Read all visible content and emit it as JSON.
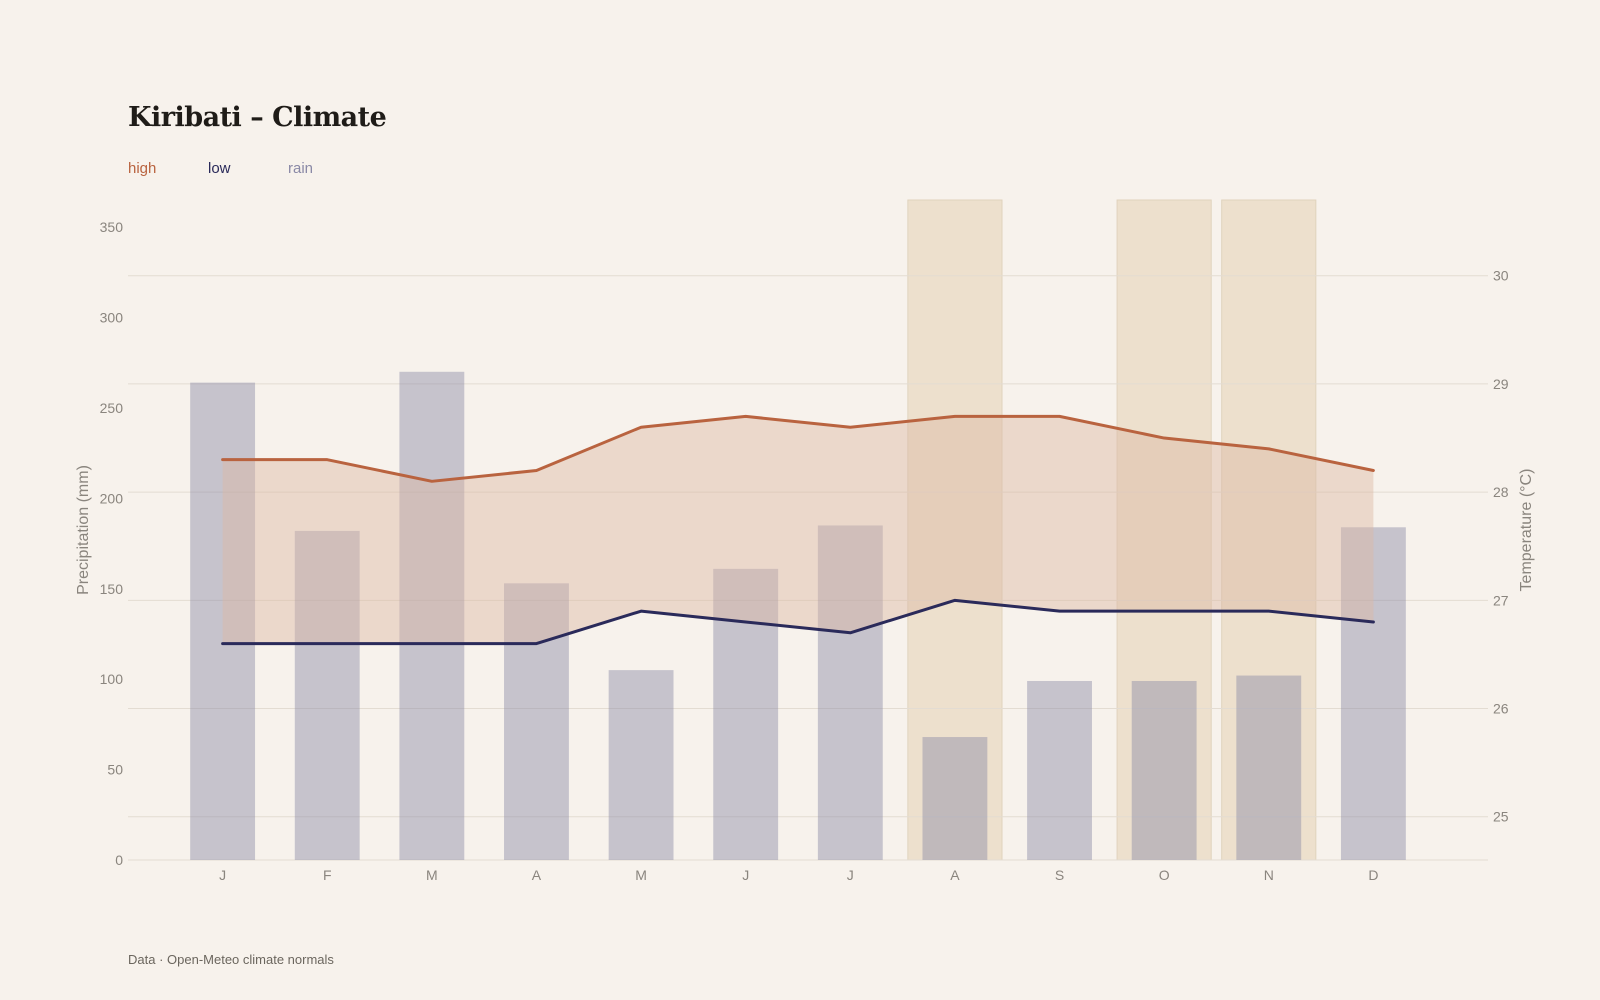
{
  "title": "Kiribati – Climate",
  "source": "Data · Open-Meteo climate normals",
  "legend": [
    {
      "key": "high",
      "label": "high",
      "color": "#b9633f"
    },
    {
      "key": "low",
      "label": "low",
      "color": "#2a2a5a"
    },
    {
      "key": "rain",
      "label": "rain",
      "color": "#8a89a6"
    }
  ],
  "chart_data": {
    "type": "bar",
    "categories": [
      "J",
      "F",
      "M",
      "A",
      "M",
      "J",
      "J",
      "A",
      "S",
      "O",
      "N",
      "D"
    ],
    "series": [
      {
        "name": "rain",
        "type": "bar",
        "axis": "left",
        "values": [
          264,
          182,
          270,
          153,
          105,
          161,
          185,
          68,
          99,
          99,
          102,
          184
        ]
      },
      {
        "name": "high",
        "type": "line",
        "axis": "right",
        "values": [
          28.3,
          28.3,
          28.1,
          28.2,
          28.6,
          28.7,
          28.6,
          28.7,
          28.7,
          28.5,
          28.4,
          28.2
        ]
      },
      {
        "name": "low",
        "type": "line",
        "axis": "right",
        "values": [
          26.6,
          26.6,
          26.6,
          26.6,
          26.9,
          26.8,
          26.7,
          27.0,
          26.9,
          26.9,
          26.9,
          26.8
        ]
      }
    ],
    "highlighted_months": [
      7,
      9,
      10
    ],
    "ylabel": "Precipitation (mm)",
    "y2label": "Temperature (°C)",
    "ylim": [
      0,
      365
    ],
    "y2lim": [
      24.6,
      30.7
    ],
    "yticks": [
      0,
      50,
      100,
      150,
      200,
      250,
      300,
      350
    ],
    "y2ticks": [
      25,
      26,
      27,
      28,
      29,
      30
    ],
    "grid": "horizontal",
    "legend_position": "top-left",
    "colors": {
      "background": "#f7f2ec",
      "high": "#b9633f",
      "low": "#2a2a5a",
      "rain": "#8a89a6",
      "band_fill": "#dcb7a3",
      "highlight": "#e9dac3",
      "grid": "#e3dcd2",
      "tick": "#8a857e"
    }
  }
}
